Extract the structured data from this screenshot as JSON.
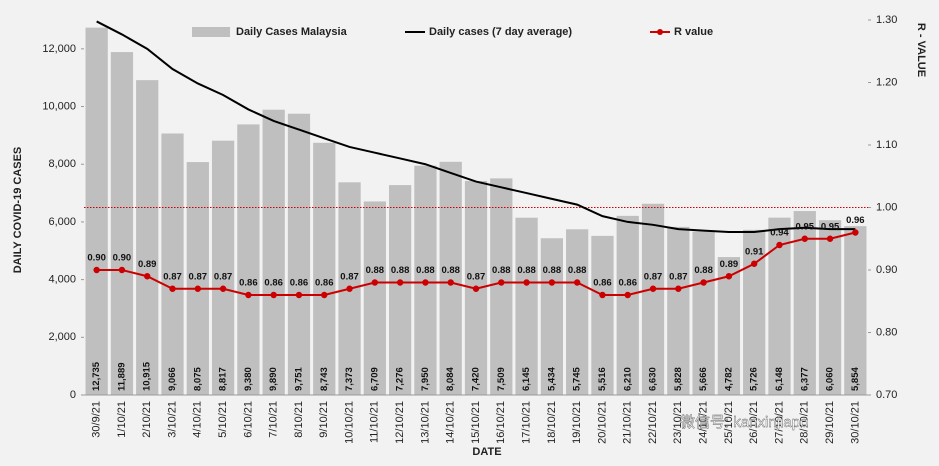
{
  "chart_data": {
    "type": "bar",
    "categories": [
      "30/9/21",
      "1/10/21",
      "2/10/21",
      "3/10/21",
      "4/10/21",
      "5/10/21",
      "6/10/21",
      "7/10/21",
      "8/10/21",
      "9/10/21",
      "10/10/21",
      "11/10/21",
      "12/10/21",
      "13/10/21",
      "14/10/21",
      "15/10/21",
      "16/10/21",
      "17/10/21",
      "18/10/21",
      "19/10/21",
      "20/10/21",
      "21/10/21",
      "22/10/21",
      "23/10/21",
      "24/10/21",
      "25/10/21",
      "26/10/21",
      "27/10/21",
      "28/10/21",
      "29/10/21",
      "30/10/21"
    ],
    "series": [
      {
        "name": "Daily Cases Malaysia",
        "color": "#bfbfbf",
        "type": "bar",
        "values": [
          12735,
          11889,
          10915,
          9066,
          8075,
          8817,
          9380,
          9890,
          9751,
          8743,
          7373,
          6709,
          7276,
          7950,
          8084,
          7420,
          7509,
          6145,
          5434,
          5745,
          5516,
          6210,
          6630,
          5828,
          5666,
          4782,
          5726,
          6148,
          6377,
          6060,
          5854
        ],
        "value_labels": [
          "12,735",
          "11,889",
          "10,915",
          "9,066",
          "8,075",
          "8,817",
          "9,380",
          "9,890",
          "9,751",
          "8,743",
          "7,373",
          "6,709",
          "7,276",
          "7,950",
          "8,084",
          "7,420",
          "7,509",
          "6,145",
          "5,434",
          "5,745",
          "5,516",
          "6,210",
          "6,630",
          "5,828",
          "5,666",
          "4,782",
          "5,726",
          "6,148",
          "6,377",
          "6,060",
          "5,854"
        ]
      },
      {
        "name": "Daily cases (7 day average)",
        "color": "#000000",
        "type": "line",
        "values": [
          12950,
          12500,
          12000,
          11300,
          10800,
          10400,
          9900,
          9500,
          9200,
          8900,
          8600,
          8400,
          8200,
          8000,
          7700,
          7400,
          7200,
          7000,
          6800,
          6600,
          6200,
          6000,
          5900,
          5750,
          5700,
          5650,
          5650,
          5750,
          5800,
          5750,
          5750
        ]
      },
      {
        "name": "R value",
        "color": "#cc0000",
        "type": "line",
        "axis": "y2",
        "values": [
          0.9,
          0.9,
          0.89,
          0.87,
          0.87,
          0.87,
          0.86,
          0.86,
          0.86,
          0.86,
          0.87,
          0.88,
          0.88,
          0.88,
          0.88,
          0.87,
          0.88,
          0.88,
          0.88,
          0.88,
          0.86,
          0.86,
          0.87,
          0.87,
          0.88,
          0.89,
          0.91,
          0.94,
          0.95,
          0.95,
          0.96
        ],
        "value_labels": [
          "0.90",
          "0.90",
          "0.89",
          "0.87",
          "0.87",
          "0.87",
          "0.86",
          "0.86",
          "0.86",
          "0.86",
          "0.87",
          "0.88",
          "0.88",
          "0.88",
          "0.88",
          "0.87",
          "0.88",
          "0.88",
          "0.88",
          "0.88",
          "0.86",
          "0.86",
          "0.87",
          "0.87",
          "0.88",
          "0.89",
          "0.91",
          "0.94",
          "0.95",
          "0.95",
          "0.96"
        ]
      }
    ],
    "ylabel": "DAILY COVID-19 CASES",
    "y2label": "R - VALUE",
    "xlabel": "DATE",
    "ylim": [
      0,
      13000
    ],
    "yticks": [
      0,
      {
        "value": 2000,
        "label": "2,000"
      },
      {
        "value": 4000,
        "label": "4,000"
      },
      {
        "value": 6000,
        "label": "6,000"
      },
      {
        "value": 8000,
        "label": "8,000"
      },
      {
        "value": 10000,
        "label": "10,000"
      },
      {
        "value": 12000,
        "label": "12,000"
      }
    ],
    "y2lim": [
      0.7,
      1.3
    ],
    "y2ticks": [
      {
        "value": 0.7,
        "label": "0.70"
      },
      {
        "value": 0.8,
        "label": "0.80"
      },
      {
        "value": 0.9,
        "label": "0.90"
      },
      {
        "value": 1.0,
        "label": "1.00"
      },
      {
        "value": 1.1,
        "label": "1.10"
      },
      {
        "value": 1.2,
        "label": "1.20"
      },
      {
        "value": 1.3,
        "label": "1.30"
      }
    ],
    "reference_line": 1.0,
    "reference_color": "#cc0000",
    "watermark": "微信号: kanxinjiapo"
  }
}
